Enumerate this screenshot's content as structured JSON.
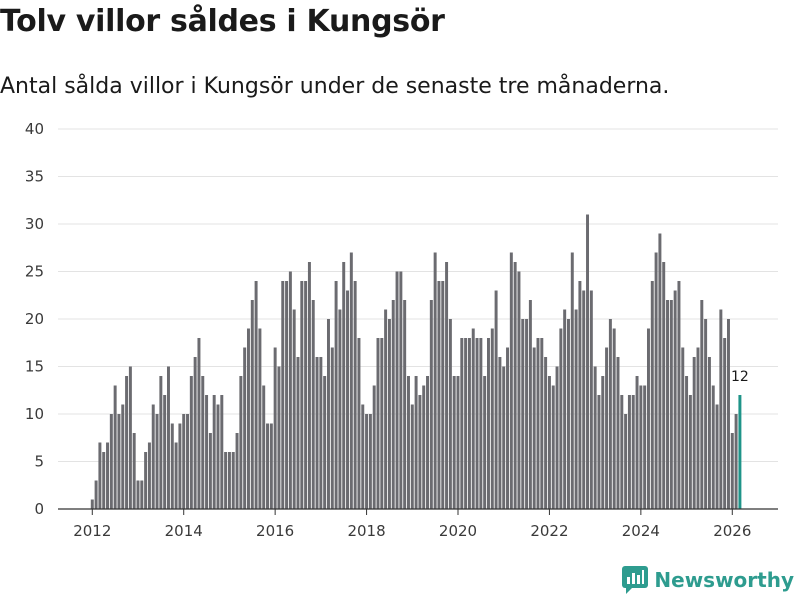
{
  "header": {
    "title": "Tolv villor såldes i Kungsör",
    "subtitle": "Antal sålda villor i Kungsör under de senaste tre månaderna."
  },
  "brand": {
    "name": "Newsworthy",
    "color": "#2e9c8f"
  },
  "colors": {
    "bar": "#6b6b70",
    "highlight": "#1f9489",
    "grid": "#e3e3e3",
    "axis": "#333333"
  },
  "chart_data": {
    "type": "bar",
    "title": "Tolv villor såldes i Kungsör",
    "subtitle": "Antal sålda villor i Kungsör under de senaste tre månaderna.",
    "xlabel": "",
    "ylabel": "",
    "x_start": 2012.0,
    "x_step": 0.0833333,
    "xlim": [
      2011.25,
      2027.0
    ],
    "ylim": [
      0,
      40
    ],
    "y_ticks": [
      0,
      5,
      10,
      15,
      20,
      25,
      30,
      35,
      40
    ],
    "x_ticks": [
      2012,
      2014,
      2016,
      2018,
      2020,
      2022,
      2024,
      2026
    ],
    "grid": true,
    "highlight_last": true,
    "last_label": "12",
    "values": [
      1,
      3,
      7,
      6,
      7,
      10,
      13,
      10,
      11,
      14,
      15,
      8,
      3,
      3,
      6,
      7,
      11,
      10,
      14,
      12,
      15,
      9,
      7,
      9,
      10,
      10,
      14,
      16,
      18,
      14,
      12,
      8,
      12,
      11,
      12,
      6,
      6,
      6,
      8,
      14,
      17,
      19,
      22,
      24,
      19,
      13,
      9,
      9,
      17,
      15,
      24,
      24,
      25,
      21,
      16,
      24,
      24,
      26,
      22,
      16,
      16,
      14,
      20,
      17,
      24,
      21,
      26,
      23,
      27,
      24,
      18,
      11,
      10,
      10,
      13,
      18,
      18,
      21,
      20,
      22,
      25,
      25,
      22,
      14,
      11,
      14,
      12,
      13,
      14,
      22,
      27,
      24,
      24,
      26,
      20,
      14,
      14,
      18,
      18,
      18,
      19,
      18,
      18,
      14,
      18,
      19,
      23,
      16,
      15,
      17,
      27,
      26,
      25,
      20,
      20,
      22,
      17,
      18,
      18,
      16,
      14,
      13,
      15,
      19,
      21,
      20,
      27,
      21,
      24,
      23,
      31,
      23,
      15,
      12,
      14,
      17,
      20,
      19,
      16,
      12,
      10,
      12,
      12,
      14,
      13,
      13,
      19,
      24,
      27,
      29,
      26,
      22,
      22,
      23,
      24,
      17,
      14,
      12,
      16,
      17,
      22,
      20,
      16,
      13,
      11,
      21,
      18,
      20,
      8,
      10,
      12
    ]
  }
}
